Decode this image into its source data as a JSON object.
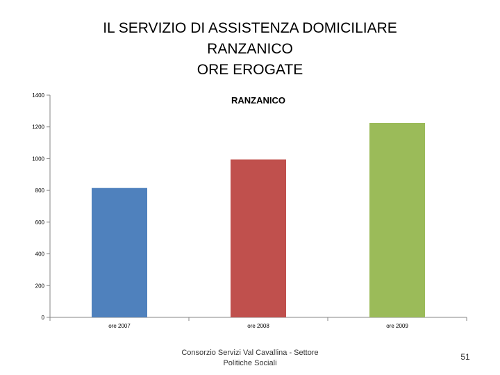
{
  "slide": {
    "title_lines": [
      "IL SERVIZIO DI ASSISTENZA DOMICILIARE",
      "RANZANICO",
      "ORE EROGATE"
    ],
    "footer": "Consorzio Servizi Val Cavallina - Settore Politiche Sociali",
    "page_number": "51"
  },
  "chart_data": {
    "type": "bar",
    "title": "RANZANICO",
    "categories": [
      "ore 2007",
      "ore 2008",
      "ore 2009"
    ],
    "values": [
      815,
      995,
      1225
    ],
    "colors": [
      "#4f81bd",
      "#c0504d",
      "#9bbb59"
    ],
    "ylim": [
      0,
      1400
    ],
    "yticks": [
      0,
      200,
      400,
      600,
      800,
      1000,
      1200,
      1400
    ],
    "grid": false,
    "legend": "none"
  }
}
